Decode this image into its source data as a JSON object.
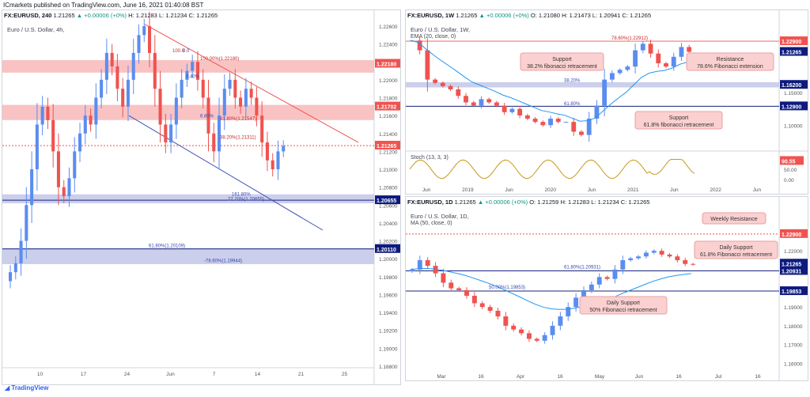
{
  "header": {
    "publisher": "ICmarkets published on TradingView.com, June 16, 2021 01:40:08 BST"
  },
  "footer": {
    "brand": "TradingView"
  },
  "colors": {
    "up": "#5b8def",
    "down": "#ef5350",
    "redzone": "#f8b4b4",
    "bluezone": "#c5cae9",
    "ma": "#2196f3",
    "stoch": "#c59a1a"
  },
  "chart_data": [
    {
      "type": "candlestick",
      "symbol_line": {
        "sym": "FX:EURUSD, 240",
        "o": "1.21265",
        "chg": "▲ +0.00006 (+0%)",
        "h": "H: 1.21283",
        "l": "L: 1.21234",
        "c": "C: 1.21265"
      },
      "title": "Euro / U.S. Dollar, 4h,",
      "y_ticks": [
        "1.22600",
        "1.22400",
        "1.22200",
        "1.22000",
        "1.21800",
        "1.21600",
        "1.21400",
        "1.21200",
        "1.21000",
        "1.20800",
        "1.20600",
        "1.20400",
        "1.20200",
        "1.20000",
        "1.19800",
        "1.19600",
        "1.19400",
        "1.19200",
        "1.19000",
        "1.18800"
      ],
      "x_ticks": [
        "10",
        "17",
        "24",
        "Jun",
        "7",
        "14",
        "21",
        "25"
      ],
      "price_labels": [
        "1.22180",
        "1.21702",
        "1.21265",
        "1.20655",
        "1.20110"
      ],
      "annotations": [
        "100.00%(1.22180)",
        "100.0",
        "38.20%(1.21311)",
        "61.80%(1.21547)",
        "161.80%",
        "27.20%(1.20655)",
        "61.80%(1.20109)",
        "-78.60%(1.19944)",
        "0.0",
        "0.40%",
        "6.80%"
      ],
      "closes": [
        1.1985,
        1.1995,
        1.202,
        1.206,
        1.21,
        1.215,
        1.217,
        1.2155,
        1.212,
        1.208,
        1.207,
        1.209,
        1.212,
        1.214,
        1.216,
        1.215,
        1.218,
        1.22,
        1.223,
        1.2215,
        1.219,
        1.217,
        1.22,
        1.223,
        1.225,
        1.226,
        1.223,
        1.219,
        1.215,
        1.213,
        1.215,
        1.218,
        1.22,
        1.221,
        1.222,
        1.22,
        1.218,
        1.214,
        1.212,
        1.216,
        1.219,
        1.22,
        1.218,
        1.217,
        1.219,
        1.218,
        1.216,
        1.213,
        1.211,
        1.21,
        1.212,
        1.2126
      ]
    },
    {
      "type": "candlestick",
      "symbol_line": {
        "sym": "FX:EURUSD, 1W",
        "o": "1.21265",
        "chg": "▲ +0.00006 (+0%)",
        "h": "O: 1.21080",
        "l": "H: 1.21473",
        "c": "L: 1.20941  C: 1.21265"
      },
      "title": "Euro / U.S. Dollar, 1W,",
      "indicator": "EMA (20, close, 0)",
      "y_ticks": [
        "1.15000",
        "1.10000",
        "1.05000"
      ],
      "x_ticks": [
        "Jun",
        "2019",
        "Jun",
        "2020",
        "Jun",
        "2021",
        "Jun",
        "2022",
        "Jun"
      ],
      "price_labels": [
        "1.22900",
        "1.21265",
        "1.16200",
        "1.12900"
      ],
      "annotations": [
        "78.60%(1.22912)",
        "38.20%",
        "61.80%"
      ],
      "callouts": [
        {
          "text": "Support 38.2% fibonacci retracement"
        },
        {
          "text": "Resistance 78.6% Fibonacci extension"
        },
        {
          "text": "Support 61.8% fibonacci retracement"
        }
      ],
      "closes": [
        1.23,
        1.215,
        1.17,
        1.165,
        1.16,
        1.155,
        1.145,
        1.135,
        1.13,
        1.14,
        1.135,
        1.13,
        1.12,
        1.125,
        1.115,
        1.11,
        1.105,
        1.1,
        1.11,
        1.105,
        1.105,
        1.09,
        1.085,
        1.11,
        1.13,
        1.17,
        1.18,
        1.185,
        1.19,
        1.215,
        1.225,
        1.21,
        1.195,
        1.19,
        1.205,
        1.22,
        1.2126
      ]
    },
    {
      "type": "line",
      "name": "Stoch (13, 3, 3)",
      "value_label": "90.55",
      "y_ticks": [
        "100.00",
        "50.00",
        "0.00"
      ]
    },
    {
      "type": "candlestick",
      "symbol_line": {
        "sym": "FX:EURUSD, 1D",
        "o": "1.21265",
        "chg": "▲ +0.00006 (+0%)",
        "h": "O: 1.21259",
        "l": "H: 1.21283",
        "c": "L: 1.21234  C: 1.21265"
      },
      "title": "Euro / U.S. Dollar, 1D,",
      "indicator": "MA (50, close, 0)",
      "y_ticks": [
        "1.22000",
        "1.21000",
        "1.20000",
        "1.19000",
        "1.18000",
        "1.17000",
        "1.16000"
      ],
      "x_ticks": [
        "Mar",
        "16",
        "Apr",
        "16",
        "May",
        "Jun",
        "16",
        "Jul",
        "16"
      ],
      "price_labels": [
        "1.22900",
        "1.21265",
        "1.20931",
        "1.19853"
      ],
      "annotations": [
        "61.80%(1.20931)",
        "50.00%(1.19853)"
      ],
      "callouts": [
        {
          "text": "Weekly Resistance"
        },
        {
          "text": "Daily Support 61.8% Fibonacci retracement"
        },
        {
          "text": "Daily Support 50% Fibonacci retracement"
        }
      ],
      "closes": [
        1.21,
        1.215,
        1.212,
        1.208,
        1.203,
        1.2,
        1.199,
        1.196,
        1.192,
        1.19,
        1.188,
        1.185,
        1.18,
        1.178,
        1.176,
        1.173,
        1.172,
        1.175,
        1.18,
        1.185,
        1.19,
        1.195,
        1.199,
        1.202,
        1.206,
        1.205,
        1.21,
        1.215,
        1.216,
        1.217,
        1.219,
        1.22,
        1.218,
        1.217,
        1.215,
        1.213,
        1.2126
      ]
    }
  ]
}
